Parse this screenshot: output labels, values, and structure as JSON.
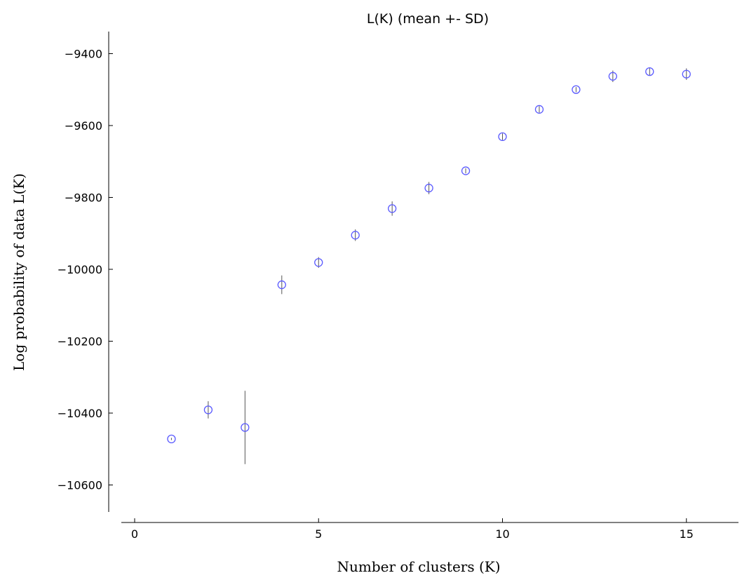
{
  "chart_data": {
    "type": "scatter",
    "title": "L(K) (mean +- SD)",
    "xlabel": "Number of clusters (K)",
    "ylabel": "Log probability of data L(K)",
    "xlim": [
      -0.3,
      16.5
    ],
    "ylim": [
      -10650,
      -9340
    ],
    "xticks": [
      0,
      5,
      10,
      15
    ],
    "yticks": [
      -9400,
      -9600,
      -9800,
      -10000,
      -10200,
      -10400,
      -10600
    ],
    "xtick_labels": [
      "0",
      "5",
      "10",
      "15"
    ],
    "ytick_labels": [
      "−9400",
      "−9600",
      "−9800",
      "−10000",
      "−10200",
      "−10400",
      "−10600"
    ],
    "grid": false,
    "marker": "open-circle",
    "marker_color": "#5b5bff",
    "errorbar_color": "#555555",
    "series": [
      {
        "x": [
          1,
          2,
          3,
          4,
          5,
          6,
          7,
          8,
          9,
          10,
          11,
          12,
          13,
          14,
          15
        ],
        "y": [
          -10472,
          -10391,
          -10440,
          -10043,
          -9981,
          -9905,
          -9831,
          -9774,
          -9726,
          -9631,
          -9555,
          -9500,
          -9463,
          -9450,
          -9457
        ],
        "sd": [
          3,
          24,
          102,
          26,
          15,
          16,
          20,
          17,
          7,
          9,
          9,
          7,
          16,
          10,
          16
        ]
      }
    ]
  }
}
